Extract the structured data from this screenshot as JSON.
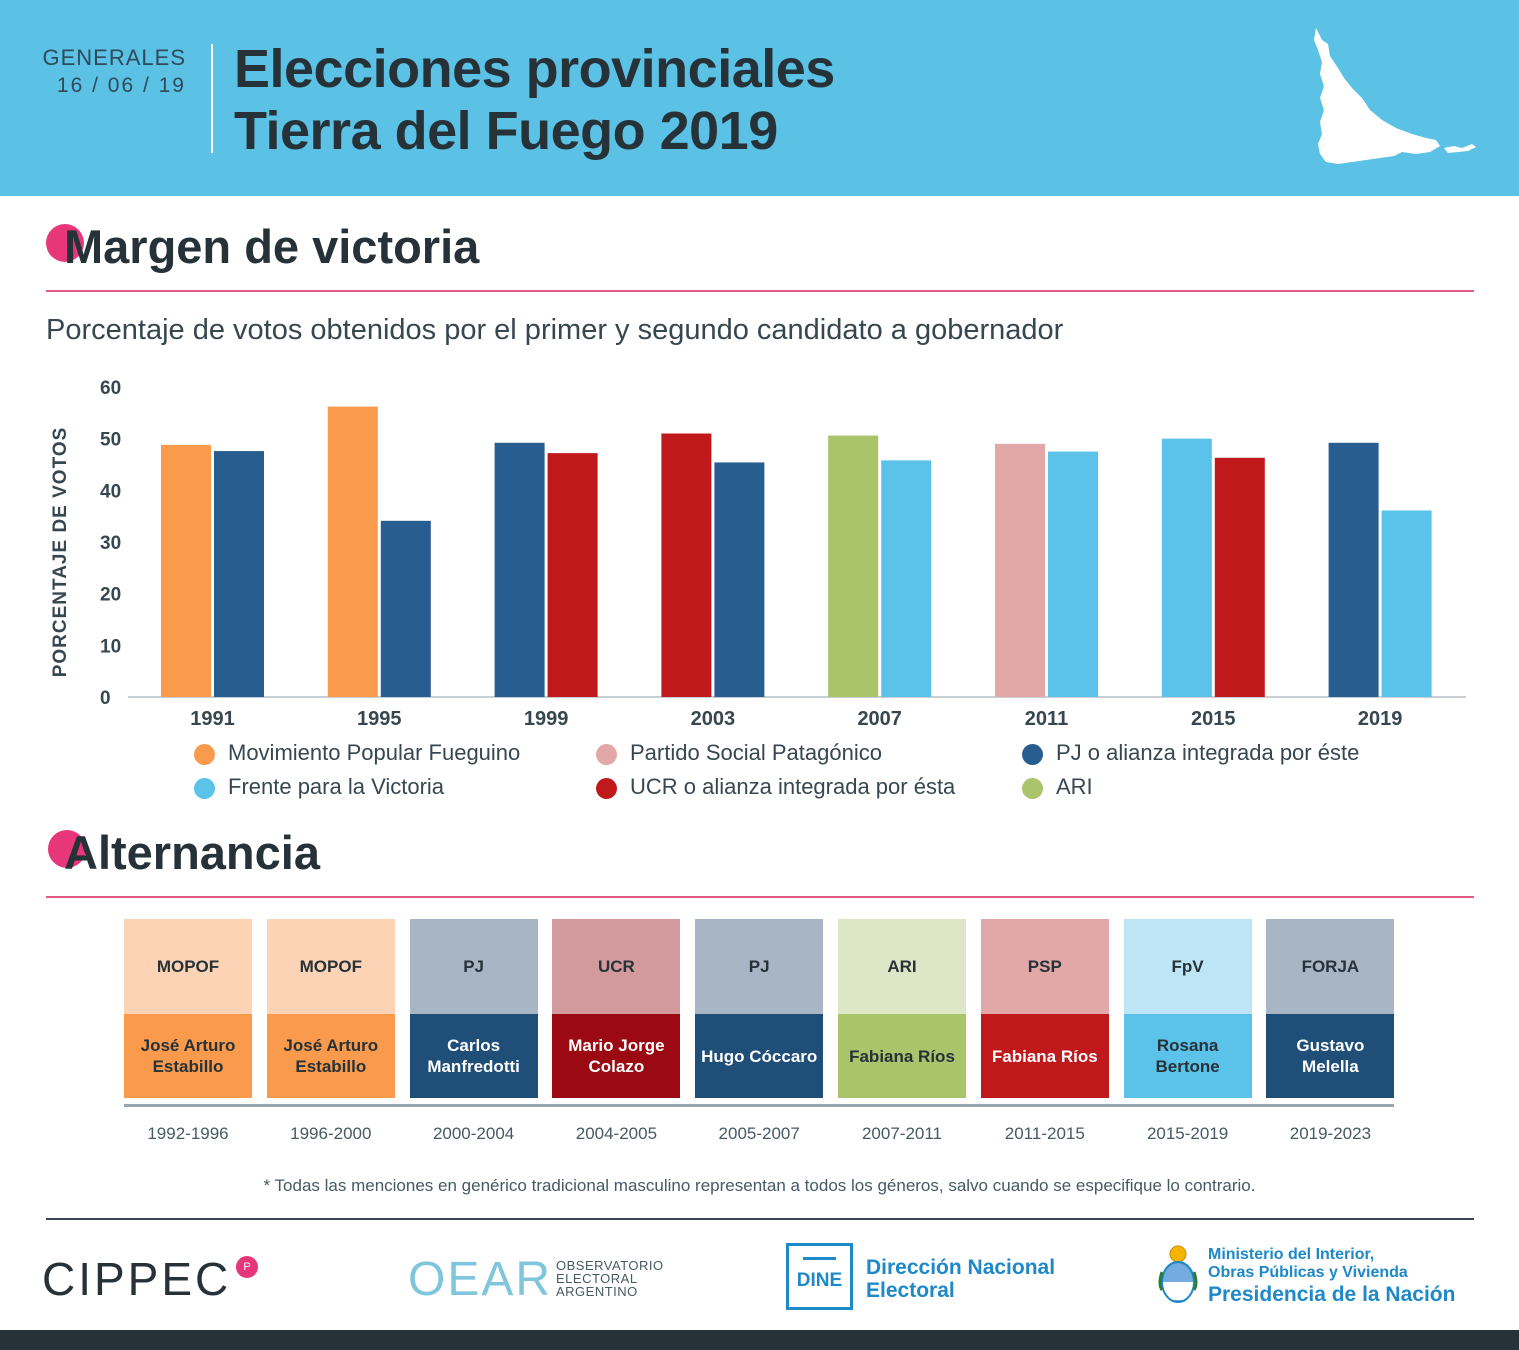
{
  "header": {
    "kicker": "GENERALES",
    "date": "16 / 06 / 19",
    "title_line1": "Elecciones provinciales",
    "title_line2": "Tierra del Fuego 2019"
  },
  "sections": {
    "margin_title": "Margen de victoria",
    "alternancia_title": "Alternancia"
  },
  "subtitle": "Porcentaje de votos obtenidos por el primer y segundo candidato a gobernador",
  "colors": {
    "mopof": "#fa9a4c",
    "psp": "#e2a8a8",
    "pj": "#285d90",
    "fpv": "#5bc2ea",
    "ucr": "#c0191c",
    "ari": "#a9c46a"
  },
  "chart_data": {
    "type": "bar",
    "title": "Porcentaje de votos obtenidos por el primer y segundo candidato a gobernador",
    "xlabel": "",
    "ylabel": "PORCENTAJE DE VOTOS",
    "ylim": [
      0,
      60
    ],
    "yticks": [
      "0",
      "10",
      "20",
      "30",
      "40",
      "50",
      "60"
    ],
    "categories": [
      "1991",
      "1995",
      "1999",
      "2003",
      "2007",
      "2011",
      "2015",
      "2019"
    ],
    "series": [
      {
        "name": "Primer candidato",
        "values": [
          48.8,
          56.2,
          49.2,
          51.0,
          50.6,
          49.0,
          50.0,
          49.2
        ],
        "parties": [
          "mopof",
          "mopof",
          "pj",
          "ucr",
          "ari",
          "psp",
          "fpv",
          "pj"
        ]
      },
      {
        "name": "Segundo candidato",
        "values": [
          47.6,
          34.1,
          47.2,
          45.4,
          45.8,
          47.5,
          46.3,
          36.1
        ],
        "parties": [
          "pj",
          "pj",
          "ucr",
          "pj",
          "fpv",
          "fpv",
          "ucr",
          "fpv"
        ]
      }
    ],
    "legend": [
      {
        "key": "mopof",
        "label": "Movimiento Popular Fueguino"
      },
      {
        "key": "psp",
        "label": "Partido Social Patagónico"
      },
      {
        "key": "pj",
        "label": "PJ o alianza integrada por éste"
      },
      {
        "key": "fpv",
        "label": "Frente para la Victoria"
      },
      {
        "key": "ucr",
        "label": "UCR o alianza integrada por ésta"
      },
      {
        "key": "ari",
        "label": "ARI"
      }
    ]
  },
  "alternancia": [
    {
      "party": "MOPOF",
      "name": "José Arturo Estabillo",
      "period": "1992-1996",
      "top": "#fdd3b5",
      "bottom": "#fa9a4c",
      "dark_text": true
    },
    {
      "party": "MOPOF",
      "name": "José Arturo Estabillo",
      "period": "1996-2000",
      "top": "#fdd3b5",
      "bottom": "#fa9a4c",
      "dark_text": true
    },
    {
      "party": "PJ",
      "name": "Carlos Manfredotti",
      "period": "2000-2004",
      "top": "#a7b5c5",
      "bottom": "#1f4e79",
      "dark_text": false
    },
    {
      "party": "UCR",
      "name": "Mario Jorge Colazo",
      "period": "2004-2005",
      "top": "#d39a9e",
      "bottom": "#9b0a12",
      "dark_text": false
    },
    {
      "party": "PJ",
      "name": "Hugo Cóccaro",
      "period": "2005-2007",
      "top": "#a7b5c5",
      "bottom": "#1f4e79",
      "dark_text": false
    },
    {
      "party": "ARI",
      "name": "Fabiana Ríos",
      "period": "2007-2011",
      "top": "#dde6c6",
      "bottom": "#a9c46a",
      "dark_text": true
    },
    {
      "party": "PSP",
      "name": "Fabiana Ríos",
      "period": "2011-2015",
      "top": "#e2a8a8",
      "bottom": "#c0191c",
      "dark_text": false
    },
    {
      "party": "FpV",
      "name": "Rosana Bertone",
      "period": "2015-2019",
      "top": "#bde5f6",
      "bottom": "#5bc2ea",
      "dark_text": true
    },
    {
      "party": "FORJA",
      "name": "Gustavo Melella",
      "period": "2019-2023",
      "top": "#a7b5c5",
      "bottom": "#1f4e79",
      "dark_text": false
    }
  ],
  "footnote": "* Todas las menciones en genérico tradicional masculino representan a todos los géneros, salvo cuando se especifique lo contrario.",
  "logos": {
    "cippec": "CIPPEC",
    "oear": "OEAR",
    "oear_line1": "OBSERVATORIO",
    "oear_line2": "ELECTORAL",
    "oear_line3": "ARGENTINO",
    "dine_abbr": "DINE",
    "dine_line1": "Dirección Nacional",
    "dine_line2": "Electoral",
    "ministerio_line1": "Ministerio del Interior,",
    "ministerio_line2": "Obras Públicas y Vivienda",
    "ministerio_line3": "Presidencia de la Nación"
  }
}
